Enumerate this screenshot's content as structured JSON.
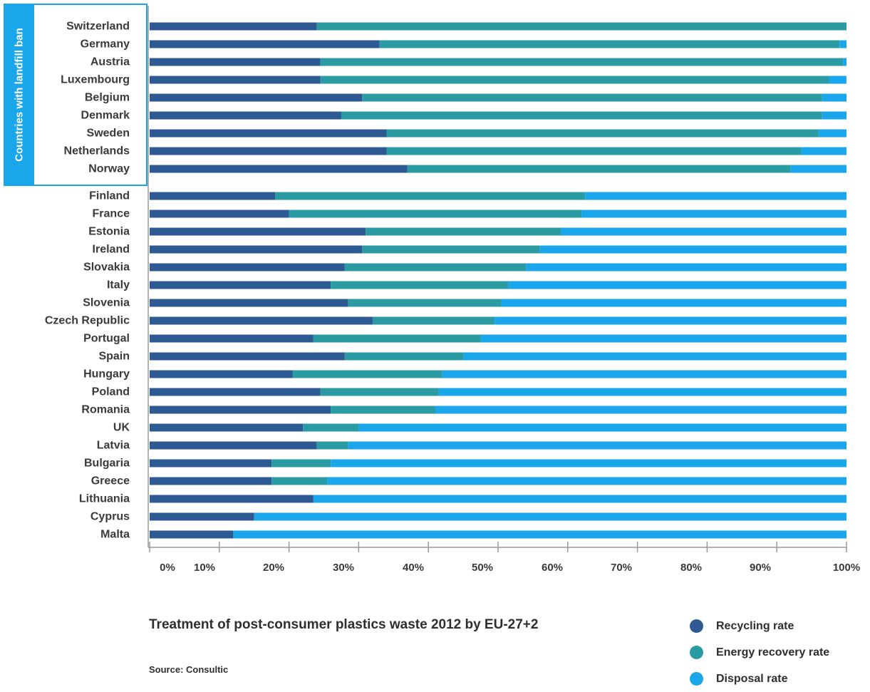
{
  "chart_data": {
    "type": "bar",
    "orientation": "horizontal",
    "stacked": true,
    "group_label": "Countries with landfill ban",
    "categories": [
      "Switzerland",
      "Germany",
      "Austria",
      "Luxembourg",
      "Belgium",
      "Denmark",
      "Sweden",
      "Netherlands",
      "Norway",
      "Finland",
      "France",
      "Estonia",
      "Ireland",
      "Slovakia",
      "Italy",
      "Slovenia",
      "Czech Republic",
      "Portugal",
      "Spain",
      "Hungary",
      "Poland",
      "Romania",
      "UK",
      "Latvia",
      "Bulgaria",
      "Greece",
      "Lithuania",
      "Cyprus",
      "Malta"
    ],
    "landfill_ban_count": 9,
    "series": [
      {
        "name": "Recycling rate",
        "color": "#2e5a94",
        "values": [
          24,
          33,
          24.5,
          24.5,
          30.5,
          27.5,
          34,
          34,
          37,
          18,
          20,
          31,
          30.5,
          28,
          26,
          28.5,
          32,
          23.5,
          28,
          20.5,
          24.5,
          26,
          22,
          24,
          17.5,
          17.5,
          23.5,
          15,
          12
        ]
      },
      {
        "name": "Energy recovery rate",
        "color": "#2a9aa3",
        "values": [
          76,
          66,
          75,
          73,
          66,
          69,
          62,
          59.5,
          55,
          44.5,
          42,
          28,
          25.5,
          26,
          25.5,
          22,
          17.5,
          24,
          17,
          21.5,
          17,
          15,
          8,
          4.5,
          8.5,
          8,
          0,
          0,
          0
        ]
      },
      {
        "name": "Disposal rate",
        "color": "#1aa6ea",
        "values": [
          0,
          1,
          0.5,
          2.5,
          3.5,
          3.5,
          4,
          6.5,
          8,
          37.5,
          38,
          41,
          44,
          46,
          48.5,
          49.5,
          50.5,
          52.5,
          55,
          58,
          58.5,
          59,
          70,
          71.5,
          74,
          74.5,
          76.5,
          85,
          88
        ]
      }
    ],
    "x_ticks": [
      "0%",
      "10%",
      "20%",
      "30%",
      "40%",
      "50%",
      "60%",
      "70%",
      "80%",
      "90%",
      "100%"
    ],
    "xlim": [
      0,
      100
    ],
    "xlabel": "",
    "ylabel": "",
    "legend_position": "bottom-right",
    "grid": false
  },
  "caption": {
    "title": "Treatment of post-consumer plastics waste 2012 by EU-27+2",
    "source": "Source: Consultic"
  },
  "legend": [
    {
      "label": "Recycling rate",
      "color": "#2e5a94"
    },
    {
      "label": "Energy recovery rate",
      "color": "#2a9aa3"
    },
    {
      "label": "Disposal rate",
      "color": "#1aa6ea"
    }
  ]
}
